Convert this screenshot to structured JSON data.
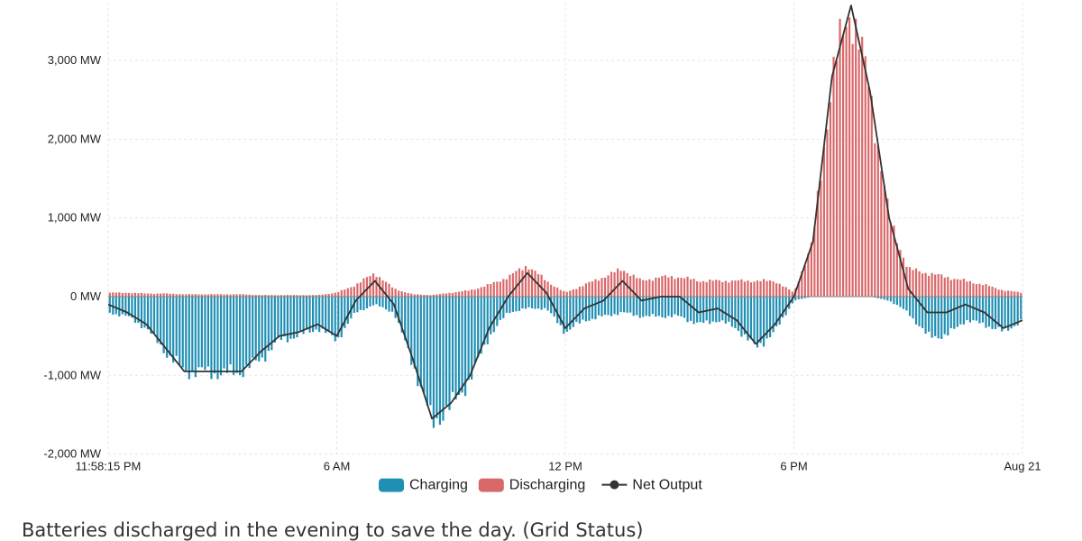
{
  "chart_data": {
    "type": "bar",
    "title": "",
    "xlabel": "",
    "ylabel": "",
    "ylim": [
      -2000,
      3800
    ],
    "y_ticks": [
      -2000,
      -1000,
      0,
      1000,
      2000,
      3000
    ],
    "y_tick_labels": [
      "-2,000 MW",
      "-1,000 MW",
      "0 MW",
      "1,000 MW",
      "2,000 MW",
      "3,000 MW"
    ],
    "x_unit": "hours since start",
    "xlim": [
      0,
      24
    ],
    "x_ticks": [
      0,
      6,
      12,
      18,
      24
    ],
    "x_tick_labels": [
      "11:58:15 PM",
      "6 AM",
      "12 PM",
      "6 PM",
      "Aug 21"
    ],
    "legend": {
      "position": "bottom",
      "items": [
        {
          "label": "Charging",
          "color": "#1f8fb4",
          "marker": "swatch"
        },
        {
          "label": "Discharging",
          "color": "#d9686a",
          "marker": "swatch"
        },
        {
          "label": "Net Output",
          "color": "#333333",
          "marker": "line-dot"
        }
      ]
    },
    "colors": {
      "charging": "#1f8fb4",
      "discharging": "#d9686a",
      "net": "#333333",
      "grid": "#e6e6e6"
    },
    "series": [
      {
        "name": "Net Output",
        "x": [
          0,
          0.5,
          1,
          1.5,
          2,
          2.5,
          3,
          3.5,
          4,
          4.5,
          5,
          5.5,
          6,
          6.5,
          7,
          7.5,
          8,
          8.5,
          9,
          9.5,
          10,
          10.5,
          11,
          11.5,
          12,
          12.5,
          13,
          13.5,
          14,
          14.5,
          15,
          15.5,
          16,
          16.5,
          17,
          17.5,
          18,
          18.5,
          19,
          19.5,
          20,
          20.5,
          21,
          21.5,
          22,
          22.5,
          23,
          23.5,
          24
        ],
        "values": [
          -100,
          -200,
          -350,
          -650,
          -950,
          -950,
          -950,
          -950,
          -700,
          -500,
          -450,
          -350,
          -500,
          -50,
          200,
          -100,
          -800,
          -1550,
          -1350,
          -1000,
          -400,
          0,
          300,
          50,
          -400,
          -150,
          -50,
          200,
          -50,
          0,
          0,
          -200,
          -150,
          -300,
          -600,
          -350,
          0,
          700,
          2800,
          3700,
          2600,
          1000,
          100,
          -200,
          -200,
          -100,
          -200,
          -400,
          -300
        ]
      },
      {
        "name": "Charging",
        "x": [
          0,
          0.5,
          1,
          1.5,
          2,
          2.5,
          3,
          3.5,
          4,
          4.5,
          5,
          5.5,
          6,
          6.5,
          7,
          7.5,
          8,
          8.5,
          9,
          9.5,
          10,
          10.5,
          11,
          11.5,
          12,
          12.5,
          13,
          13.5,
          14,
          14.5,
          15,
          15.5,
          16,
          16.5,
          17,
          17.5,
          18,
          18.5,
          19,
          19.5,
          20,
          20.5,
          21,
          21.5,
          22,
          22.5,
          23,
          23.5,
          24
        ],
        "values": [
          -200,
          -250,
          -400,
          -700,
          -950,
          -950,
          -980,
          -950,
          -800,
          -550,
          -500,
          -400,
          -550,
          -200,
          -100,
          -200,
          -850,
          -1600,
          -1400,
          -1050,
          -500,
          -200,
          -150,
          -150,
          -450,
          -300,
          -250,
          -200,
          -250,
          -250,
          -250,
          -350,
          -300,
          -400,
          -650,
          -450,
          -50,
          0,
          0,
          0,
          0,
          -50,
          -200,
          -500,
          -500,
          -300,
          -350,
          -450,
          -300
        ]
      },
      {
        "name": "Discharging",
        "x": [
          0,
          0.5,
          1,
          1.5,
          2,
          2.5,
          3,
          3.5,
          4,
          4.5,
          5,
          5.5,
          6,
          6.5,
          7,
          7.5,
          8,
          8.5,
          9,
          9.5,
          10,
          10.5,
          11,
          11.5,
          12,
          12.5,
          13,
          13.5,
          14,
          14.5,
          15,
          15.5,
          16,
          16.5,
          17,
          17.5,
          18,
          18.5,
          19,
          19.5,
          20,
          20.5,
          21,
          21.5,
          22,
          22.5,
          23,
          23.5,
          24
        ],
        "values": [
          50,
          50,
          40,
          40,
          30,
          30,
          30,
          30,
          20,
          20,
          20,
          20,
          50,
          150,
          300,
          100,
          30,
          20,
          50,
          80,
          150,
          250,
          400,
          200,
          50,
          150,
          250,
          350,
          200,
          250,
          250,
          200,
          200,
          200,
          200,
          200,
          50,
          700,
          2800,
          3700,
          2600,
          1000,
          350,
          300,
          250,
          200,
          150,
          80,
          50
        ]
      }
    ]
  },
  "caption": "Batteries discharged in the evening to save the day. (Grid Status)"
}
